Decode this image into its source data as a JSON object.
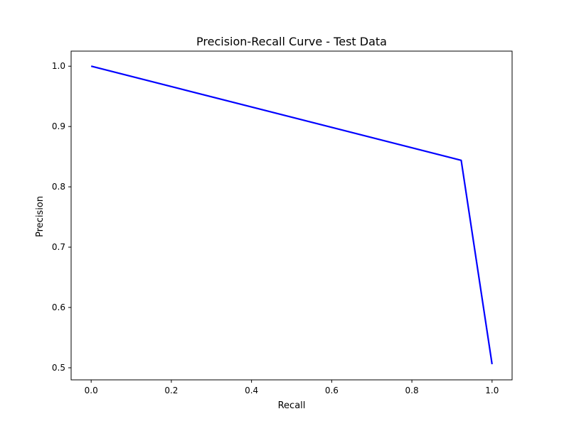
{
  "chart_data": {
    "type": "line",
    "title": "Precision-Recall Curve - Test Data",
    "xlabel": "Recall",
    "ylabel": "Precision",
    "xlim": [
      -0.05,
      1.05
    ],
    "ylim": [
      0.48,
      1.025
    ],
    "x_ticks": [
      0.0,
      0.2,
      0.4,
      0.6,
      0.8,
      1.0
    ],
    "x_tick_labels": [
      "0.0",
      "0.2",
      "0.4",
      "0.6",
      "0.8",
      "1.0"
    ],
    "y_ticks": [
      0.5,
      0.6,
      0.7,
      0.8,
      0.9,
      1.0
    ],
    "y_tick_labels": [
      "0.5",
      "0.6",
      "0.7",
      "0.8",
      "0.9",
      "1.0"
    ],
    "grid": false,
    "series": [
      {
        "color": "#0000ff",
        "x": [
          0.0,
          0.923,
          1.0
        ],
        "y": [
          1.0,
          0.844,
          0.506
        ]
      }
    ]
  }
}
